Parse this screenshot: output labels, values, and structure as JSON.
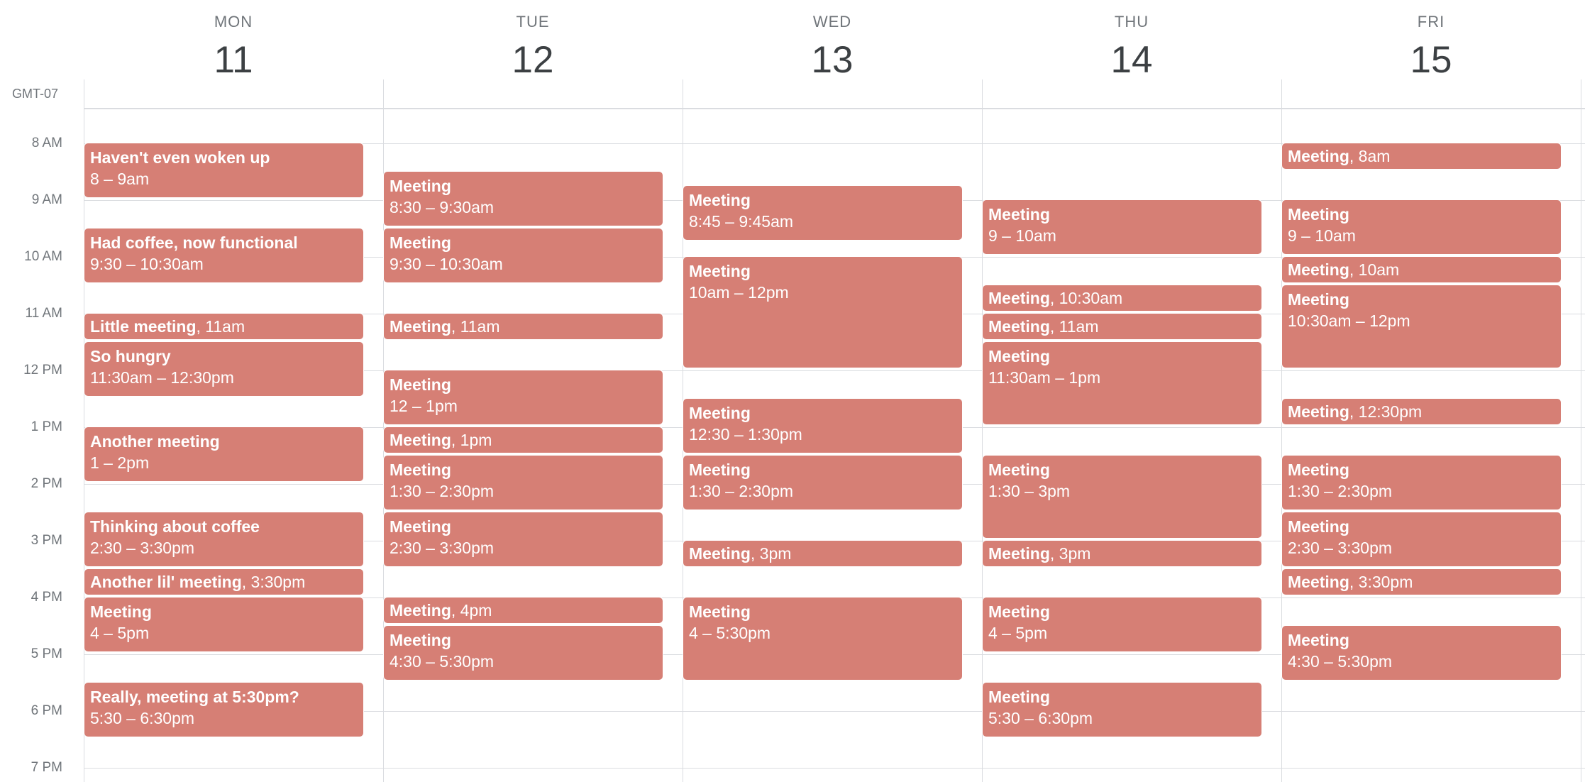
{
  "timezone": "GMT-07",
  "days": [
    {
      "name": "MON",
      "number": "11"
    },
    {
      "name": "TUE",
      "number": "12"
    },
    {
      "name": "WED",
      "number": "13"
    },
    {
      "name": "THU",
      "number": "14"
    },
    {
      "name": "FRI",
      "number": "15"
    }
  ],
  "hours": [
    "8 AM",
    "9 AM",
    "10 AM",
    "11 AM",
    "12 PM",
    "1 PM",
    "2 PM",
    "3 PM",
    "4 PM",
    "5 PM",
    "6 PM",
    "7 PM"
  ],
  "colors": {
    "event": "#d67f75",
    "grid": "#dadce0",
    "label": "#70757a"
  },
  "events": [
    {
      "day": 0,
      "start": 8,
      "end": 9,
      "title": "Haven't even woken up",
      "time": "8 – 9am"
    },
    {
      "day": 0,
      "start": 9.5,
      "end": 10.5,
      "title": "Had coffee, now functional",
      "time": "9:30 – 10:30am"
    },
    {
      "day": 0,
      "start": 11,
      "end": 11.5,
      "title": "Little meeting",
      "time": "11am"
    },
    {
      "day": 0,
      "start": 11.5,
      "end": 12.5,
      "title": "So hungry",
      "time": "11:30am – 12:30pm"
    },
    {
      "day": 0,
      "start": 13,
      "end": 14,
      "title": "Another meeting",
      "time": "1 – 2pm"
    },
    {
      "day": 0,
      "start": 14.5,
      "end": 15.5,
      "title": "Thinking about coffee",
      "time": "2:30 – 3:30pm"
    },
    {
      "day": 0,
      "start": 15.5,
      "end": 16,
      "title": "Another lil' meeting",
      "time": "3:30pm"
    },
    {
      "day": 0,
      "start": 16,
      "end": 17,
      "title": "Meeting",
      "time": "4 – 5pm"
    },
    {
      "day": 0,
      "start": 17.5,
      "end": 18.5,
      "title": "Really, meeting at 5:30pm?",
      "time": "5:30 – 6:30pm"
    },
    {
      "day": 1,
      "start": 8.5,
      "end": 9.5,
      "title": "Meeting",
      "time": "8:30 – 9:30am"
    },
    {
      "day": 1,
      "start": 9.5,
      "end": 10.5,
      "title": "Meeting",
      "time": "9:30 – 10:30am"
    },
    {
      "day": 1,
      "start": 11,
      "end": 11.5,
      "title": "Meeting",
      "time": "11am"
    },
    {
      "day": 1,
      "start": 12,
      "end": 13,
      "title": "Meeting",
      "time": "12 – 1pm"
    },
    {
      "day": 1,
      "start": 13,
      "end": 13.5,
      "title": "Meeting",
      "time": "1pm"
    },
    {
      "day": 1,
      "start": 13.5,
      "end": 14.5,
      "title": "Meeting",
      "time": "1:30 – 2:30pm"
    },
    {
      "day": 1,
      "start": 14.5,
      "end": 15.5,
      "title": "Meeting",
      "time": "2:30 – 3:30pm"
    },
    {
      "day": 1,
      "start": 16,
      "end": 16.5,
      "title": "Meeting",
      "time": "4pm"
    },
    {
      "day": 1,
      "start": 16.5,
      "end": 17.5,
      "title": "Meeting",
      "time": "4:30 – 5:30pm"
    },
    {
      "day": 2,
      "start": 8.75,
      "end": 9.75,
      "title": "Meeting",
      "time": "8:45 – 9:45am"
    },
    {
      "day": 2,
      "start": 10,
      "end": 12,
      "title": "Meeting",
      "time": "10am – 12pm"
    },
    {
      "day": 2,
      "start": 12.5,
      "end": 13.5,
      "title": "Meeting",
      "time": "12:30 – 1:30pm"
    },
    {
      "day": 2,
      "start": 13.5,
      "end": 14.5,
      "title": "Meeting",
      "time": "1:30 – 2:30pm"
    },
    {
      "day": 2,
      "start": 15,
      "end": 15.5,
      "title": "Meeting",
      "time": "3pm"
    },
    {
      "day": 2,
      "start": 16,
      "end": 17.5,
      "title": "Meeting",
      "time": "4 – 5:30pm"
    },
    {
      "day": 3,
      "start": 9,
      "end": 10,
      "title": "Meeting",
      "time": "9 – 10am"
    },
    {
      "day": 3,
      "start": 10.5,
      "end": 11,
      "title": "Meeting",
      "time": "10:30am"
    },
    {
      "day": 3,
      "start": 11,
      "end": 11.5,
      "title": "Meeting",
      "time": "11am"
    },
    {
      "day": 3,
      "start": 11.5,
      "end": 13,
      "title": "Meeting",
      "time": "11:30am – 1pm"
    },
    {
      "day": 3,
      "start": 13.5,
      "end": 15,
      "title": "Meeting",
      "time": "1:30 – 3pm"
    },
    {
      "day": 3,
      "start": 15,
      "end": 15.5,
      "title": "Meeting",
      "time": "3pm"
    },
    {
      "day": 3,
      "start": 16,
      "end": 17,
      "title": "Meeting",
      "time": "4 – 5pm"
    },
    {
      "day": 3,
      "start": 17.5,
      "end": 18.5,
      "title": "Meeting",
      "time": "5:30 – 6:30pm"
    },
    {
      "day": 4,
      "start": 8,
      "end": 8.5,
      "title": "Meeting",
      "time": "8am"
    },
    {
      "day": 4,
      "start": 9,
      "end": 10,
      "title": "Meeting",
      "time": "9 – 10am"
    },
    {
      "day": 4,
      "start": 10,
      "end": 10.5,
      "title": "Meeting",
      "time": "10am"
    },
    {
      "day": 4,
      "start": 10.5,
      "end": 12,
      "title": "Meeting",
      "time": "10:30am – 12pm"
    },
    {
      "day": 4,
      "start": 12.5,
      "end": 13,
      "title": "Meeting",
      "time": "12:30pm"
    },
    {
      "day": 4,
      "start": 13.5,
      "end": 14.5,
      "title": "Meeting",
      "time": "1:30 – 2:30pm"
    },
    {
      "day": 4,
      "start": 14.5,
      "end": 15.5,
      "title": "Meeting",
      "time": "2:30 – 3:30pm"
    },
    {
      "day": 4,
      "start": 15.5,
      "end": 16,
      "title": "Meeting",
      "time": "3:30pm"
    },
    {
      "day": 4,
      "start": 16.5,
      "end": 17.5,
      "title": "Meeting",
      "time": "4:30 – 5:30pm"
    }
  ]
}
